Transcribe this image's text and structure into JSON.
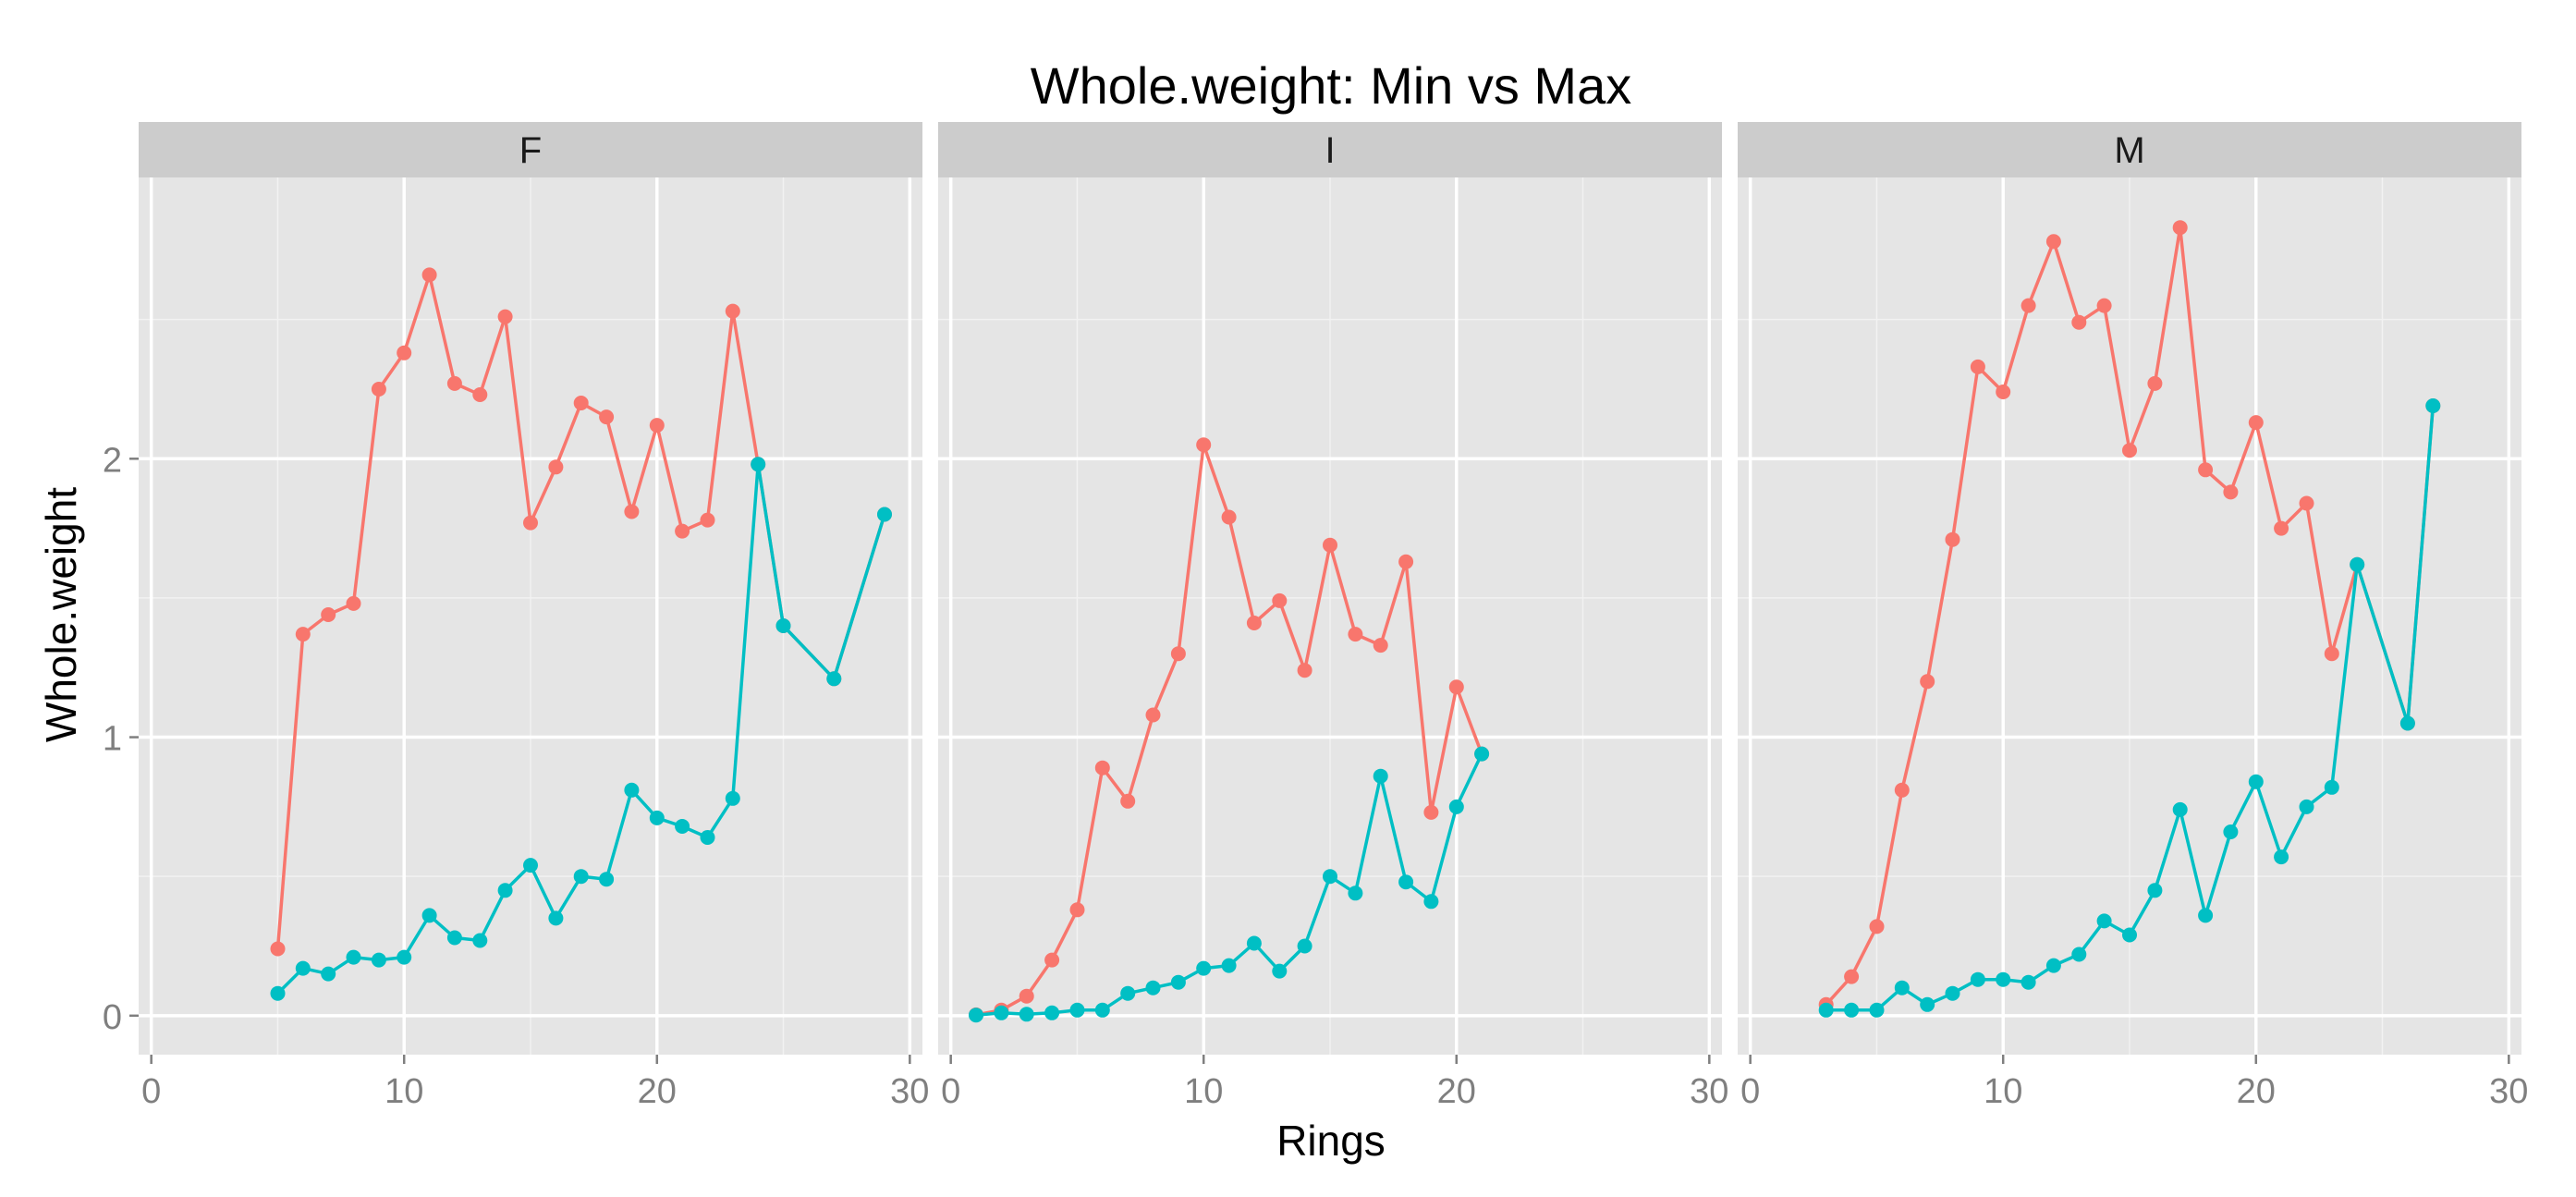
{
  "chart_data": {
    "type": "line",
    "title": "Whole.weight: Min vs Max",
    "xlabel": "Rings",
    "ylabel": "Whole.weight",
    "xlim": [
      -0.5,
      30.5
    ],
    "ylim": [
      -0.14,
      3.01
    ],
    "x_ticks": [
      0,
      10,
      20,
      30
    ],
    "y_ticks": [
      0,
      1,
      2
    ],
    "x_tick_labels": [
      "0",
      "10",
      "20",
      "30"
    ],
    "y_tick_labels": [
      "0",
      "1",
      "2"
    ],
    "grid": true,
    "legend": "none",
    "colors": {
      "max": "#F8766D",
      "min": "#00BFC4",
      "panel_bg": "#E5E5E5",
      "strip_bg": "#CCCCCC",
      "grid": "#FFFFFF",
      "axis_text": "#7F7F7F"
    },
    "panels": [
      {
        "label": "F",
        "series": [
          {
            "key": "max",
            "x": [
              5,
              6,
              7,
              8,
              9,
              10,
              11,
              12,
              13,
              14,
              15,
              16,
              17,
              18,
              19,
              20,
              21,
              22,
              23,
              24,
              25,
              27,
              29
            ],
            "values": [
              0.24,
              1.37,
              1.44,
              1.48,
              2.25,
              2.38,
              2.66,
              2.27,
              2.23,
              2.51,
              1.77,
              1.97,
              2.2,
              2.15,
              1.81,
              2.12,
              1.74,
              1.78,
              2.53,
              1.98,
              1.4,
              1.21,
              1.8
            ]
          },
          {
            "key": "min",
            "x": [
              5,
              6,
              7,
              8,
              9,
              10,
              11,
              12,
              13,
              14,
              15,
              16,
              17,
              18,
              19,
              20,
              21,
              22,
              23,
              24,
              25,
              27,
              29
            ],
            "values": [
              0.08,
              0.17,
              0.15,
              0.21,
              0.2,
              0.21,
              0.36,
              0.28,
              0.27,
              0.45,
              0.54,
              0.35,
              0.5,
              0.49,
              0.81,
              0.71,
              0.68,
              0.64,
              0.78,
              1.98,
              1.4,
              1.21,
              1.8
            ]
          }
        ]
      },
      {
        "label": "I",
        "series": [
          {
            "key": "max",
            "x": [
              1,
              2,
              3,
              4,
              5,
              6,
              7,
              8,
              9,
              10,
              11,
              12,
              13,
              14,
              15,
              16,
              17,
              18,
              19,
              20,
              21
            ],
            "values": [
              0.003,
              0.02,
              0.07,
              0.2,
              0.38,
              0.89,
              0.77,
              1.08,
              1.3,
              2.05,
              1.79,
              1.41,
              1.49,
              1.24,
              1.69,
              1.37,
              1.33,
              1.63,
              0.73,
              1.18,
              0.94
            ]
          },
          {
            "key": "min",
            "x": [
              1,
              2,
              3,
              4,
              5,
              6,
              7,
              8,
              9,
              10,
              11,
              12,
              13,
              14,
              15,
              16,
              17,
              18,
              19,
              20,
              21
            ],
            "values": [
              0.002,
              0.01,
              0.005,
              0.01,
              0.02,
              0.02,
              0.08,
              0.1,
              0.12,
              0.17,
              0.18,
              0.26,
              0.16,
              0.25,
              0.5,
              0.44,
              0.86,
              0.48,
              0.41,
              0.75,
              0.94
            ]
          }
        ]
      },
      {
        "label": "M",
        "series": [
          {
            "key": "max",
            "x": [
              3,
              4,
              5,
              6,
              7,
              8,
              9,
              10,
              11,
              12,
              13,
              14,
              15,
              16,
              17,
              18,
              19,
              20,
              21,
              22,
              23,
              24,
              26,
              27
            ],
            "values": [
              0.04,
              0.14,
              0.32,
              0.81,
              1.2,
              1.71,
              2.33,
              2.24,
              2.55,
              2.78,
              2.49,
              2.55,
              2.03,
              2.27,
              2.83,
              1.96,
              1.88,
              2.13,
              1.75,
              1.84,
              1.3,
              1.62,
              1.05,
              2.19
            ]
          },
          {
            "key": "min",
            "x": [
              3,
              4,
              5,
              6,
              7,
              8,
              9,
              10,
              11,
              12,
              13,
              14,
              15,
              16,
              17,
              18,
              19,
              20,
              21,
              22,
              23,
              24,
              26,
              27
            ],
            "values": [
              0.02,
              0.02,
              0.02,
              0.1,
              0.04,
              0.08,
              0.13,
              0.13,
              0.12,
              0.18,
              0.22,
              0.34,
              0.29,
              0.45,
              0.74,
              0.36,
              0.66,
              0.84,
              0.57,
              0.75,
              0.82,
              1.62,
              1.05,
              2.19
            ]
          }
        ]
      }
    ]
  }
}
